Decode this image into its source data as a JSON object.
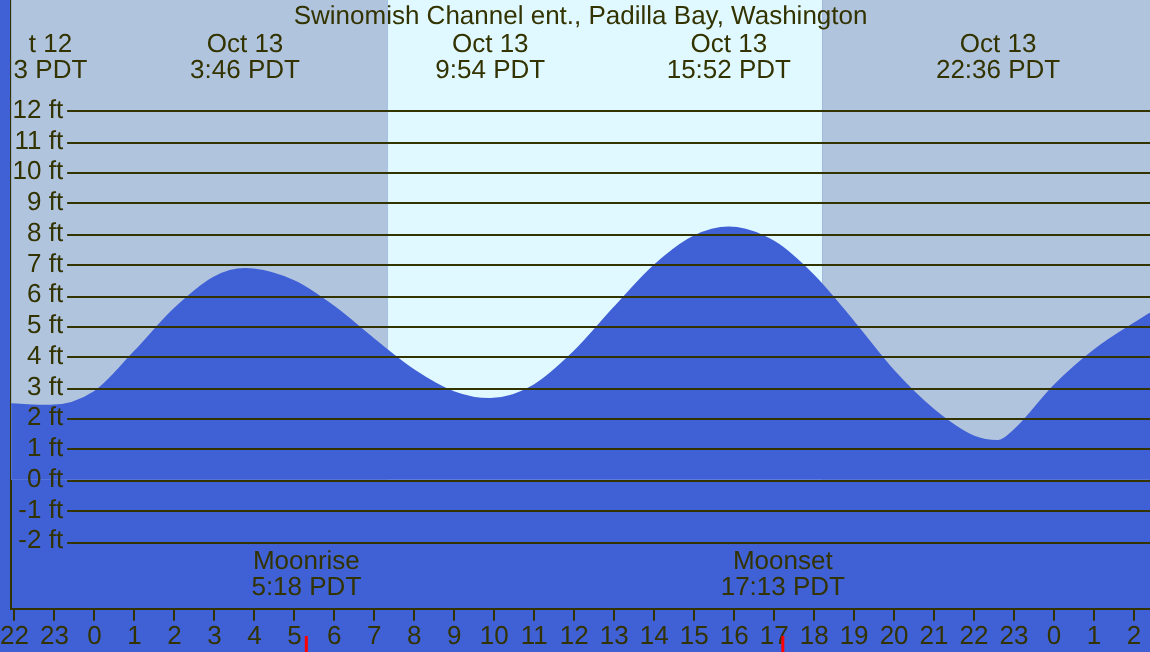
{
  "chart_data": {
    "type": "area",
    "title": "Swinomish Channel ent., Padilla Bay, Washington",
    "x": [
      "--10-12T21:55",
      "--10-12T22:54",
      "--10-13T00:00",
      "--10-13T01:00",
      "--10-13T02:00",
      "--10-13T03:00",
      "--10-13T03:46",
      "--10-13T05:00",
      "--10-13T06:00",
      "--10-13T07:00",
      "--10-13T08:00",
      "--10-13T09:00",
      "--10-13T09:54",
      "--10-13T11:00",
      "--10-13T12:00",
      "--10-13T13:00",
      "--10-13T14:00",
      "--10-13T15:00",
      "--10-13T15:52",
      "--10-13T17:00",
      "--10-13T18:00",
      "--10-13T19:00",
      "--10-13T20:00",
      "--10-13T21:00",
      "--10-13T22:00",
      "--10-13T22:36",
      "--10-13T23:00",
      "--10-14T00:00",
      "--10-14T01:00",
      "--10-14T02:24"
    ],
    "series": [
      {
        "color": "#4060d6",
        "values": [
          2.45,
          2.4,
          2.85,
          4.15,
          5.55,
          6.58,
          6.85,
          6.45,
          5.61,
          4.55,
          3.55,
          2.84,
          2.62,
          3.07,
          4.16,
          5.59,
          6.96,
          7.91,
          8.2,
          7.73,
          6.62,
          5.11,
          3.52,
          2.26,
          1.4,
          1.26,
          1.6,
          3.05,
          4.2,
          5.4
        ]
      }
    ],
    "xlim": [
      "--10-12T21:55",
      "--10-14T02:24"
    ],
    "ylim": [
      -4.2,
      15.6
    ],
    "xticks": [
      {
        "value": "--10-12T22:00",
        "label": "22"
      },
      {
        "value": "--10-12T23:00",
        "label": "23"
      },
      {
        "value": "--10-13T00:00",
        "label": "0"
      },
      {
        "value": "--10-13T01:00",
        "label": "1"
      },
      {
        "value": "--10-13T02:00",
        "label": "2"
      },
      {
        "value": "--10-13T03:00",
        "label": "3"
      },
      {
        "value": "--10-13T04:00",
        "label": "4"
      },
      {
        "value": "--10-13T05:00",
        "label": "5"
      },
      {
        "value": "--10-13T06:00",
        "label": "6"
      },
      {
        "value": "--10-13T07:00",
        "label": "7"
      },
      {
        "value": "--10-13T08:00",
        "label": "8"
      },
      {
        "value": "--10-13T09:00",
        "label": "9"
      },
      {
        "value": "--10-13T10:00",
        "label": "10"
      },
      {
        "value": "--10-13T11:00",
        "label": "11"
      },
      {
        "value": "--10-13T12:00",
        "label": "12"
      },
      {
        "value": "--10-13T13:00",
        "label": "13"
      },
      {
        "value": "--10-13T14:00",
        "label": "14"
      },
      {
        "value": "--10-13T15:00",
        "label": "15"
      },
      {
        "value": "--10-13T16:00",
        "label": "16"
      },
      {
        "value": "--10-13T17:00",
        "label": "17"
      },
      {
        "value": "--10-13T18:00",
        "label": "18"
      },
      {
        "value": "--10-13T19:00",
        "label": "19"
      },
      {
        "value": "--10-13T20:00",
        "label": "20"
      },
      {
        "value": "--10-13T21:00",
        "label": "21"
      },
      {
        "value": "--10-13T22:00",
        "label": "22"
      },
      {
        "value": "--10-13T23:00",
        "label": "23"
      },
      {
        "value": "--10-14T00:00",
        "label": "0"
      },
      {
        "value": "--10-14T01:00",
        "label": "1"
      },
      {
        "value": "--10-14T02:00",
        "label": "2"
      }
    ],
    "yticks": [
      {
        "value": -2,
        "label": "-2 ft"
      },
      {
        "value": -1,
        "label": "-1 ft"
      },
      {
        "value": 0,
        "label": "0 ft"
      },
      {
        "value": 1,
        "label": "1 ft"
      },
      {
        "value": 2,
        "label": "2 ft"
      },
      {
        "value": 3,
        "label": "3 ft"
      },
      {
        "value": 4,
        "label": "4 ft"
      },
      {
        "value": 5,
        "label": "5 ft"
      },
      {
        "value": 6,
        "label": "6 ft"
      },
      {
        "value": 7,
        "label": "7 ft"
      },
      {
        "value": 8,
        "label": "8 ft"
      },
      {
        "value": 9,
        "label": "9 ft"
      },
      {
        "value": 10,
        "label": "10 ft"
      },
      {
        "value": 11,
        "label": "11 ft"
      },
      {
        "value": 12,
        "label": "12 ft"
      }
    ],
    "grid": "y",
    "legend": false,
    "bands": [
      {
        "axis": "x",
        "from": "--10-12T21:55",
        "to": "--10-13T07:20",
        "color": "#b0c4de"
      },
      {
        "axis": "x",
        "from": "--10-13T07:20",
        "to": "--10-13T18:12",
        "color": "#e0f8ff"
      },
      {
        "axis": "x",
        "from": "--10-13T18:12",
        "to": "--10-14T02:24",
        "color": "#b0c4de"
      }
    ],
    "ref_lines": [
      {
        "axis": "x",
        "value": "--10-13T05:18",
        "label": "Moonrise\n5:18 PDT",
        "color": "#ff0000"
      },
      {
        "axis": "x",
        "value": "--10-13T17:13",
        "label": "Moonset\n17:13 PDT",
        "color": "#ff0000"
      }
    ],
    "annotations": [
      "t 12\n3 PDT",
      "Oct 13\n3:46 PDT",
      "Oct 13\n9:54 PDT",
      "Oct 13\n15:52 PDT",
      "Oct 13\n22:36 PDT"
    ]
  }
}
